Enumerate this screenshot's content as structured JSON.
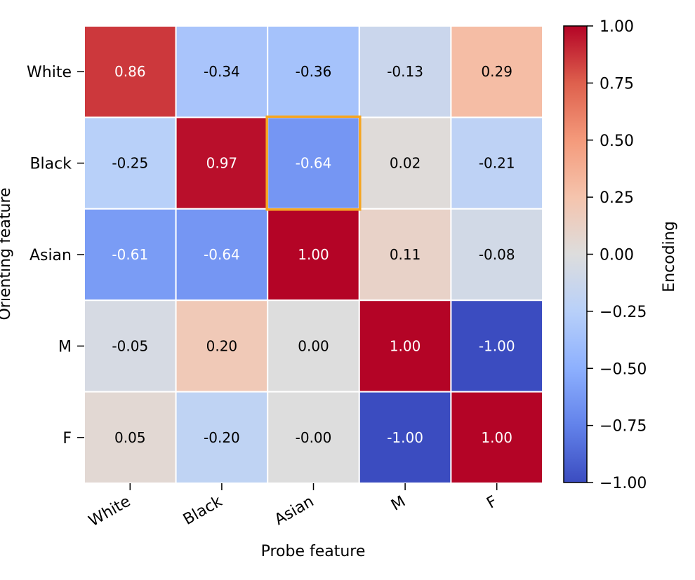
{
  "chart_data": {
    "type": "heatmap",
    "xlabel": "Probe feature",
    "ylabel": "Orienting feature",
    "x_categories": [
      "White",
      "Black",
      "Asian",
      "M",
      "F"
    ],
    "y_categories": [
      "White",
      "Black",
      "Asian",
      "M",
      "F"
    ],
    "values": [
      [
        0.86,
        -0.34,
        -0.36,
        -0.13,
        0.29
      ],
      [
        -0.25,
        0.97,
        -0.64,
        0.02,
        -0.21
      ],
      [
        -0.61,
        -0.64,
        1.0,
        0.11,
        -0.08
      ],
      [
        -0.05,
        0.2,
        0.0,
        1.0,
        -1.0
      ],
      [
        0.05,
        -0.2,
        -0.0,
        -1.0,
        1.0
      ]
    ],
    "cell_labels": [
      [
        "0.86",
        "-0.34",
        "-0.36",
        "-0.13",
        "0.29"
      ],
      [
        "-0.25",
        "0.97",
        "-0.64",
        "0.02",
        "-0.21"
      ],
      [
        "-0.61",
        "-0.64",
        "1.00",
        "0.11",
        "-0.08"
      ],
      [
        "-0.05",
        "0.20",
        "0.00",
        "1.00",
        "-1.00"
      ],
      [
        "0.05",
        "-0.20",
        "-0.00",
        "-1.00",
        "1.00"
      ]
    ],
    "highlighted_cell": {
      "row": 1,
      "col": 2
    },
    "highlight_color": "#f5a623",
    "colormap": "coolwarm",
    "vmin": -1.0,
    "vmax": 1.0,
    "colorbar": {
      "label": "Encoding",
      "ticks": [
        1.0,
        0.75,
        0.5,
        0.25,
        0.0,
        -0.25,
        -0.5,
        -0.75,
        -1.0
      ],
      "tick_labels": [
        "1.00",
        "0.75",
        "0.50",
        "0.25",
        "0.00",
        "−0.25",
        "−0.50",
        "−0.75",
        "−1.00"
      ]
    },
    "grid": false
  }
}
